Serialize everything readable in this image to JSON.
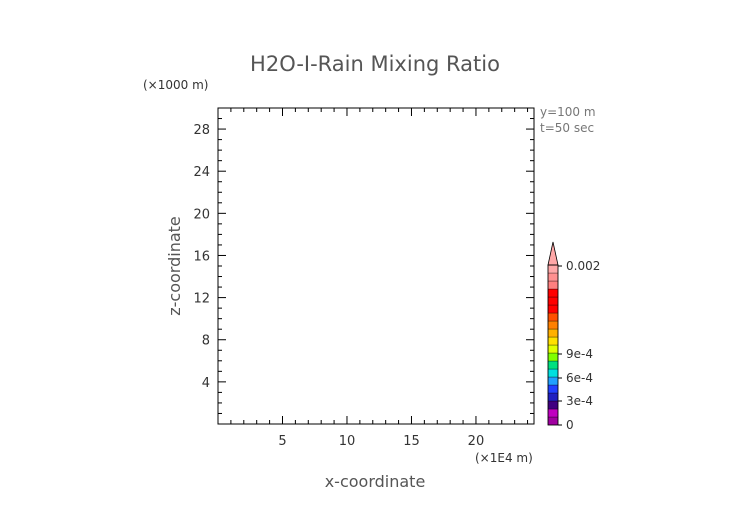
{
  "chart_data": {
    "type": "heatmap",
    "title": "H2O-I-Rain Mixing Ratio",
    "xlabel": "x-coordinate",
    "ylabel": "z-coordinate",
    "x_unit": "(×1E4 m)",
    "y_unit": "(×1000 m)",
    "xlim": [
      0,
      24.5
    ],
    "ylim": [
      0,
      30
    ],
    "x_ticks": [
      "5",
      "10",
      "15",
      "20"
    ],
    "y_ticks": [
      "4",
      "8",
      "12",
      "16",
      "20",
      "24",
      "28"
    ],
    "annotations": [
      "y=100 m",
      "t=50 sec"
    ],
    "values": [],
    "colorbar": {
      "labels": [
        "0",
        "3e-4",
        "6e-4",
        "9e-4",
        "0.002"
      ],
      "colors": [
        "#a000a0",
        "#c000c0",
        "#400080",
        "#2020c0",
        "#2040ff",
        "#20a0ff",
        "#00e0e0",
        "#00e080",
        "#80ff00",
        "#e0ff00",
        "#ffe000",
        "#ffb000",
        "#ff8000",
        "#ff5000",
        "#ff0000",
        "#ff0000",
        "#ff0000",
        "#ff8080",
        "#ff9090",
        "#ffa8a8"
      ]
    }
  }
}
